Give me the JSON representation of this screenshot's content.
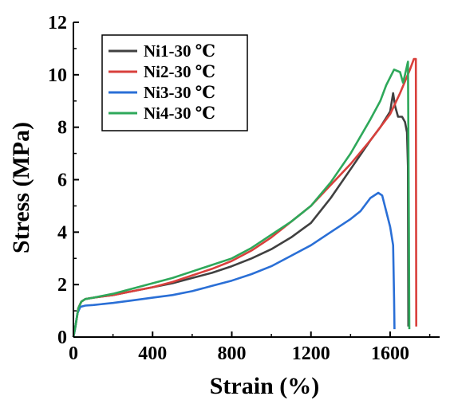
{
  "chart_data": {
    "type": "line",
    "xlabel": "Strain (%)",
    "ylabel": "Stress (MPa)",
    "xlim": [
      0,
      1850
    ],
    "ylim": [
      0,
      12
    ],
    "xticks": [
      0,
      400,
      800,
      1200,
      1600
    ],
    "yticks": [
      0,
      2,
      4,
      6,
      8,
      10,
      12
    ],
    "xtick_labels": [
      "0",
      "400",
      "800",
      "1200",
      "1600"
    ],
    "ytick_labels": [
      "0",
      "2",
      "4",
      "6",
      "8",
      "10",
      "12"
    ],
    "grid": false,
    "legend": "top-left",
    "series": [
      {
        "name": "Ni1-30 ℃",
        "color": "#404040",
        "x": [
          0,
          10,
          25,
          40,
          60,
          100,
          200,
          300,
          400,
          500,
          600,
          700,
          800,
          900,
          1000,
          1100,
          1200,
          1300,
          1400,
          1500,
          1550,
          1600,
          1615,
          1625,
          1640,
          1660,
          1675,
          1685,
          1690,
          1692
        ],
        "y": [
          0,
          0.4,
          1.1,
          1.35,
          1.45,
          1.5,
          1.6,
          1.75,
          1.9,
          2.05,
          2.25,
          2.45,
          2.7,
          3.0,
          3.35,
          3.8,
          4.35,
          5.3,
          6.4,
          7.5,
          8.0,
          8.6,
          9.3,
          8.8,
          8.4,
          8.4,
          8.2,
          7.8,
          6.5,
          0.4
        ]
      },
      {
        "name": "Ni2-30 ℃",
        "color": "#d9403c",
        "x": [
          0,
          10,
          25,
          40,
          60,
          100,
          200,
          300,
          400,
          500,
          600,
          700,
          800,
          900,
          1000,
          1100,
          1200,
          1300,
          1400,
          1500,
          1600,
          1650,
          1700,
          1720,
          1730,
          1732
        ],
        "y": [
          0,
          0.4,
          1.1,
          1.35,
          1.45,
          1.5,
          1.6,
          1.75,
          1.9,
          2.1,
          2.35,
          2.6,
          2.9,
          3.3,
          3.8,
          4.4,
          5.0,
          5.8,
          6.6,
          7.5,
          8.5,
          9.3,
          10.2,
          10.6,
          10.6,
          0.4
        ]
      },
      {
        "name": "Ni3-30 ℃",
        "color": "#2a6fd6",
        "x": [
          0,
          8,
          20,
          35,
          60,
          100,
          200,
          300,
          400,
          500,
          600,
          700,
          800,
          900,
          1000,
          1100,
          1200,
          1300,
          1400,
          1450,
          1500,
          1540,
          1560,
          1580,
          1600,
          1615,
          1620,
          1622
        ],
        "y": [
          0,
          0.3,
          0.9,
          1.15,
          1.2,
          1.22,
          1.3,
          1.4,
          1.5,
          1.6,
          1.75,
          1.95,
          2.15,
          2.4,
          2.7,
          3.1,
          3.5,
          4.0,
          4.5,
          4.8,
          5.3,
          5.5,
          5.4,
          4.8,
          4.2,
          3.5,
          1.5,
          0.3
        ]
      },
      {
        "name": "Ni4-30 ℃",
        "color": "#2ea85a",
        "x": [
          0,
          10,
          25,
          40,
          60,
          100,
          200,
          300,
          400,
          500,
          600,
          700,
          800,
          900,
          1000,
          1100,
          1200,
          1300,
          1400,
          1500,
          1550,
          1580,
          1620,
          1650,
          1665,
          1675,
          1690,
          1695,
          1697
        ],
        "y": [
          0,
          0.4,
          1.1,
          1.35,
          1.45,
          1.5,
          1.65,
          1.85,
          2.05,
          2.25,
          2.5,
          2.75,
          3.0,
          3.4,
          3.9,
          4.4,
          5.0,
          5.9,
          7.0,
          8.3,
          9.0,
          9.6,
          10.2,
          10.1,
          9.7,
          10.0,
          10.5,
          4.0,
          0.3
        ]
      }
    ]
  }
}
